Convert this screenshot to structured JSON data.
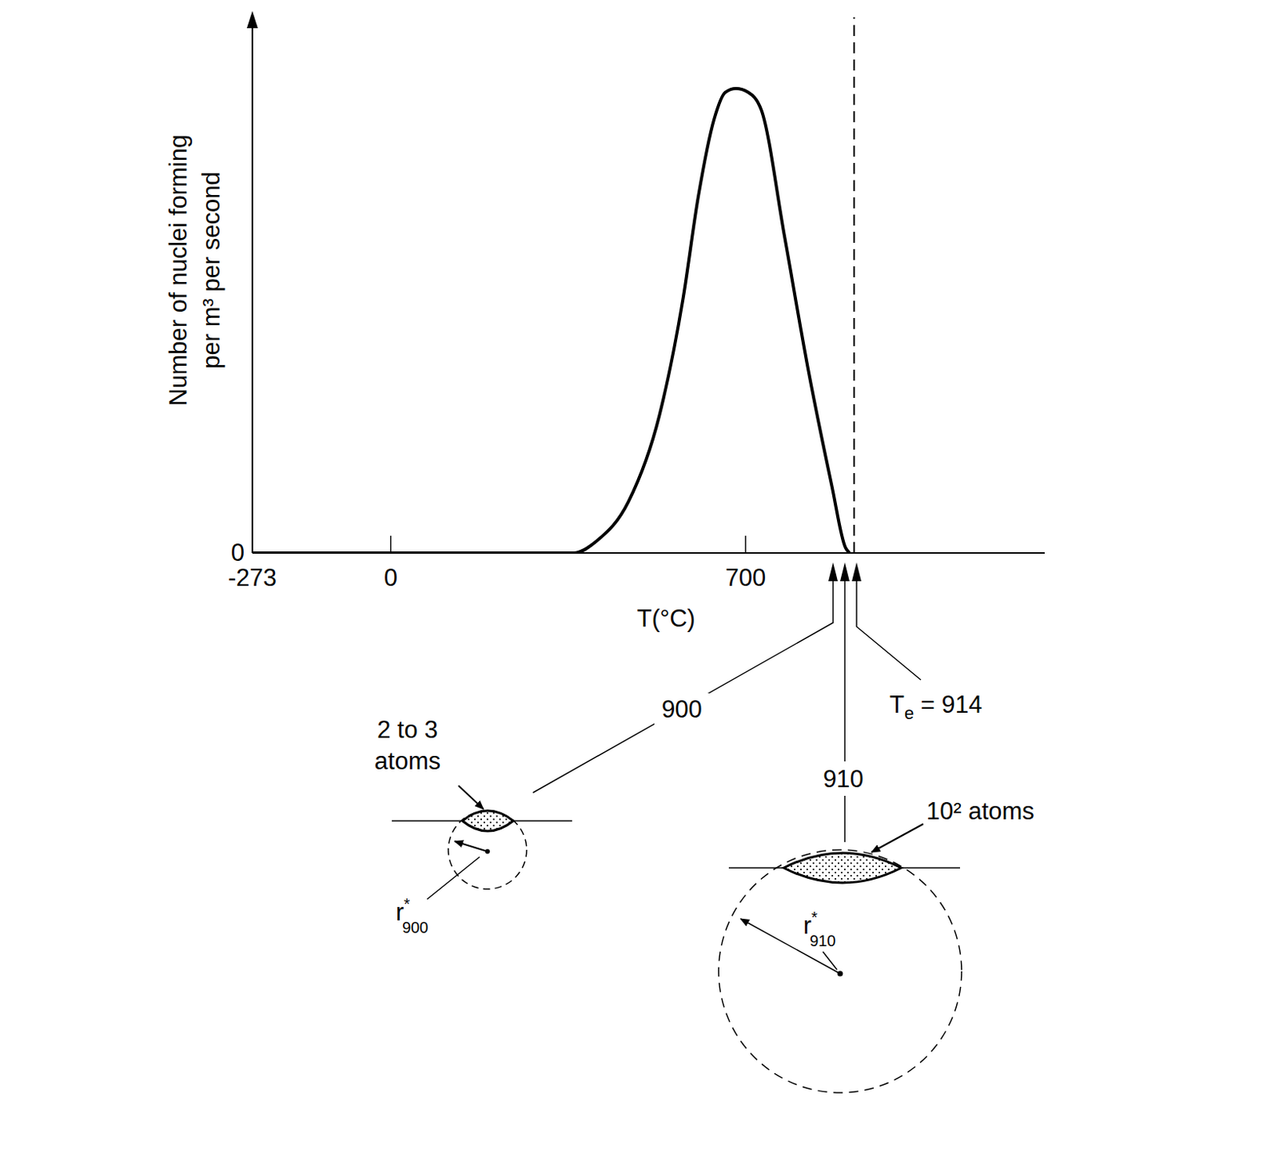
{
  "chart_data": {
    "type": "line",
    "x": [
      -273,
      0,
      300,
      361,
      407,
      469,
      530,
      577,
      607,
      638,
      660,
      681,
      705,
      731,
      777,
      823,
      870,
      897,
      905
    ],
    "values": [
      0,
      0,
      0,
      0,
      2.3,
      9.6,
      25.7,
      47.7,
      66.7,
      81,
      86,
      86.7,
      86,
      82.7,
      59,
      34.5,
      12.6,
      1,
      0
    ],
    "color": "#000000",
    "xlim": [
      -273,
      1290
    ],
    "ylim": [
      0,
      100
    ],
    "xticks": [
      -273,
      0,
      700
    ],
    "yticks": [
      0
    ],
    "xlabel": "T(°C)",
    "ylabel": [
      "Number of nuclei forming",
      "per m³ per second"
    ],
    "annotations": [
      {
        "x": 900,
        "label": "900"
      },
      {
        "x": 910,
        "label": "910"
      },
      {
        "x": 914,
        "label": "Te = 914",
        "subscript": "e",
        "line_style": "dashed"
      }
    ],
    "nuclei": [
      {
        "label": [
          "2 to 3",
          "atoms"
        ],
        "radius_label": "r*",
        "radius_subscript": "900"
      },
      {
        "label": [
          "10² atoms"
        ],
        "radius_label": "r*",
        "radius_subscript": "910"
      }
    ]
  }
}
